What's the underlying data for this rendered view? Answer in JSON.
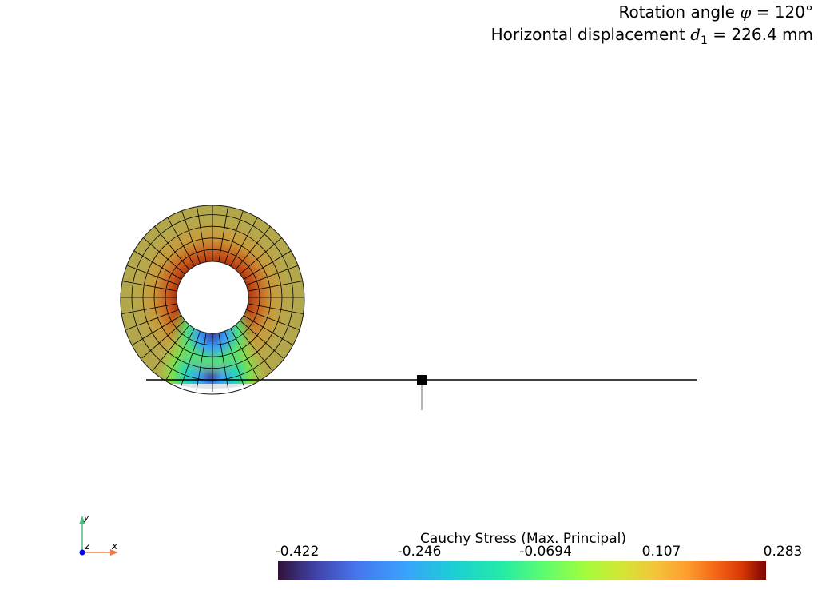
{
  "title": {
    "line1_prefix": "Rotation angle ",
    "line1_symbol": "φ",
    "line1_suffix": " = 120°",
    "line2_prefix": "Horizontal displacement ",
    "line2_symbol": "d",
    "line2_subscript": "1",
    "line2_suffix": " = 226.4 mm"
  },
  "colorbar": {
    "title": "Cauchy Stress (Max. Principal)",
    "tick_labels": [
      "-0.422",
      "-0.246",
      "-0.0694",
      "0.107",
      "0.283"
    ],
    "colormap": "turbo"
  },
  "axes": {
    "x_label": "x",
    "y_label": "y",
    "z_label": "z",
    "x_color": "#f07a4a",
    "y_color": "#4fba82",
    "z_color": "#0000ee"
  },
  "colors": {
    "mesh_lines": "#000000",
    "shell_base": "#b3a34b",
    "ground": "#000000"
  }
}
